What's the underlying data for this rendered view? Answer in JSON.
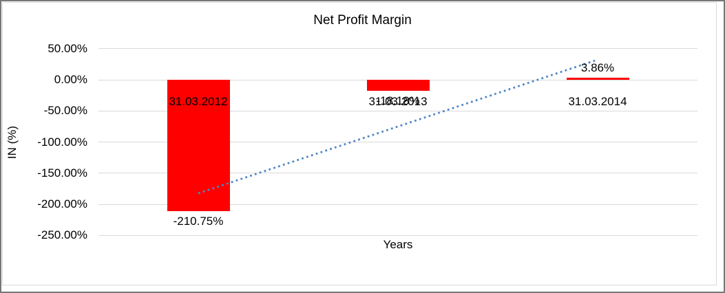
{
  "window": {
    "background": "#ffffff",
    "outer_border_color": "#777777",
    "chart_border_color": "#d9d9d9"
  },
  "chart_data": {
    "type": "bar",
    "title": "Net Profit Margin",
    "categories": [
      "31.03.2012",
      "31.03.2013",
      "31.03.2014"
    ],
    "values": [
      -210.75,
      -18.18,
      3.86
    ],
    "value_labels": [
      "-210.75%",
      "-18.18%",
      "3.86%"
    ],
    "xlabel": "Years",
    "ylabel": "IN (%)",
    "ylim": [
      -250,
      50
    ],
    "ytick_values": [
      50,
      0,
      -50,
      -100,
      -150,
      -200,
      -250
    ],
    "yticks": [
      "50.00%",
      "0.00%",
      "-50.00%",
      "-100.00%",
      "-150.00%",
      "-200.00%",
      "-250.00%"
    ],
    "bar_color": "#ff0000",
    "gridline_color": "#d9d9d9",
    "text_color": "#000000",
    "grid": "horizontal",
    "legend": "none",
    "trendline": {
      "type": "linear",
      "style": "dotted",
      "color": "#4f86c6"
    }
  }
}
